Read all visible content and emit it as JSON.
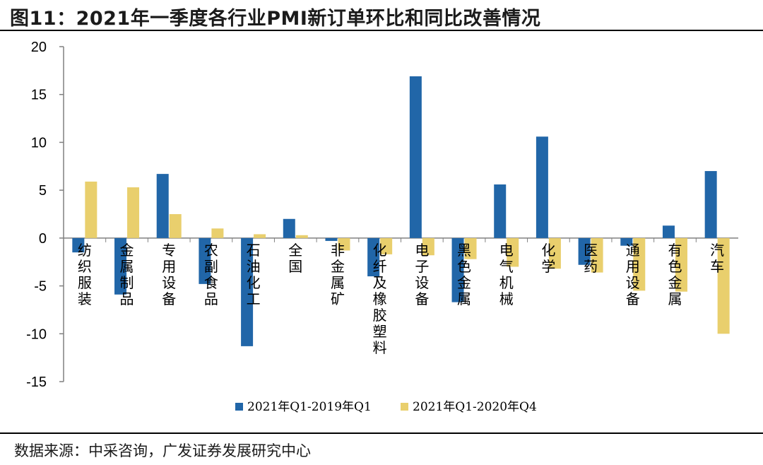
{
  "page": {
    "title": "图11：2021年一季度各行业PMI新订单环比和同比改善情况",
    "source": "数据来源：中采咨询，广发证券发展研究中心"
  },
  "colors": {
    "series1": "#2166a8",
    "series2": "#e9cf6d",
    "axis": "#808080"
  },
  "chart_data": {
    "type": "bar",
    "title": "图11：2021年一季度各行业PMI新订单环比和同比改善情况",
    "xlabel": "",
    "ylabel": "",
    "ylim": [
      -15,
      20
    ],
    "yticks": [
      -15,
      -10,
      -5,
      0,
      5,
      10,
      15,
      20
    ],
    "grid": false,
    "legend_position": "bottom",
    "categories": [
      "纺织服装",
      "金属制品",
      "专用设备",
      "农副食品",
      "石油化工",
      "全国",
      "非金属矿",
      "化纤及橡胶塑料",
      "电子设备",
      "黑色金属",
      "电气机械",
      "化学",
      "医药",
      "通用设备",
      "有色金属",
      "汽车"
    ],
    "series": [
      {
        "name": "2021年Q1-2019年Q1",
        "values": [
          -1.5,
          -5.9,
          6.7,
          -4.8,
          -11.3,
          2.0,
          -0.3,
          -4.0,
          16.9,
          -6.7,
          5.6,
          10.6,
          -2.8,
          -0.8,
          1.3,
          7.0
        ]
      },
      {
        "name": "2021年Q1-2020年Q4",
        "values": [
          5.9,
          5.3,
          2.5,
          1.0,
          0.4,
          0.3,
          -1.3,
          -1.7,
          -1.8,
          -2.2,
          -3.0,
          -3.2,
          -3.6,
          -5.5,
          -5.6,
          -10.0
        ]
      }
    ]
  }
}
